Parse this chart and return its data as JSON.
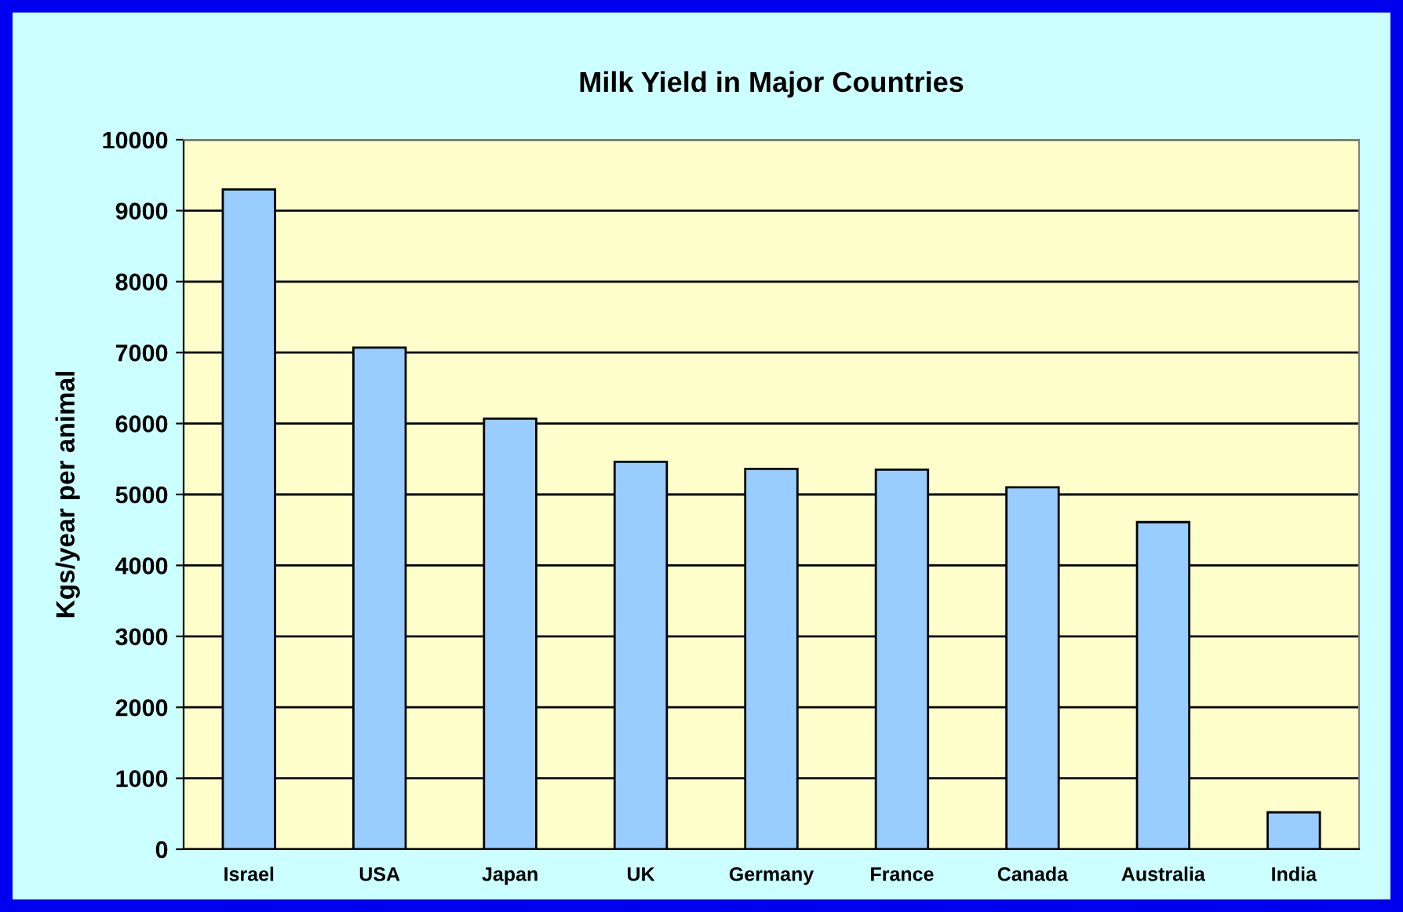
{
  "chart_data": {
    "type": "bar",
    "title": "Milk Yield in Major Countries",
    "ylabel": "Kgs/year per animal",
    "categories": [
      "Israel",
      "USA",
      "Japan",
      "UK",
      "Germany",
      "France",
      "Canada",
      "Australia",
      "India"
    ],
    "values": [
      9300,
      7070,
      6070,
      5460,
      5360,
      5350,
      5100,
      4610,
      520
    ],
    "color": "#99ccff",
    "ylim": [
      0,
      10000
    ],
    "yticks": [
      0,
      1000,
      2000,
      3000,
      4000,
      5000,
      6000,
      7000,
      8000,
      9000,
      10000
    ],
    "grid": "y"
  }
}
